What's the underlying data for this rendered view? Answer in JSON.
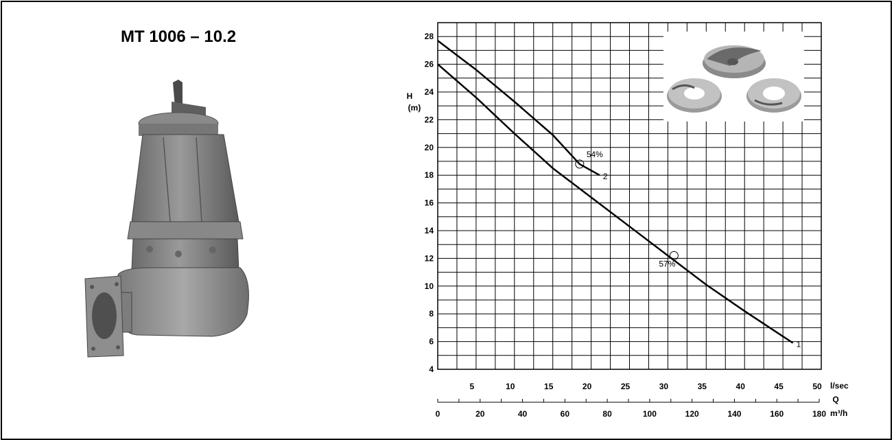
{
  "product": {
    "title": "MT 1006 – 10.2"
  },
  "chart_data": {
    "type": "line",
    "ylabel": "H",
    "yunit": "(m)",
    "xlabel": "Q",
    "x_primary_unit": "l/sec",
    "x_secondary_unit": "m³/h",
    "xlim": [
      0,
      50
    ],
    "ylim": [
      4,
      29
    ],
    "x_ticks": [
      5,
      10,
      15,
      20,
      25,
      30,
      35,
      40,
      45,
      50
    ],
    "x2_ticks": [
      0,
      20,
      40,
      60,
      80,
      100,
      120,
      140,
      160,
      180
    ],
    "y_ticks": [
      4,
      6,
      8,
      10,
      12,
      14,
      16,
      18,
      20,
      22,
      24,
      26,
      28
    ],
    "grid": true,
    "series": [
      {
        "name": "1",
        "x": [
          0,
          5,
          10,
          15,
          20,
          25,
          30,
          35,
          40,
          46.3
        ],
        "y": [
          26.0,
          23.6,
          21.0,
          18.5,
          16.4,
          14.3,
          12.2,
          10.1,
          8.2,
          5.9
        ]
      },
      {
        "name": "2",
        "x": [
          0,
          5,
          10,
          15,
          18.5,
          21.1
        ],
        "y": [
          27.7,
          25.6,
          23.3,
          20.9,
          18.8,
          18.0
        ]
      }
    ],
    "annotations": [
      {
        "label": "54%",
        "x": 18.5,
        "y": 18.8
      },
      {
        "label": "57%",
        "x": 30.8,
        "y": 12.2
      }
    ],
    "colors": {
      "curve": "#000000",
      "grid": "#000000"
    }
  }
}
